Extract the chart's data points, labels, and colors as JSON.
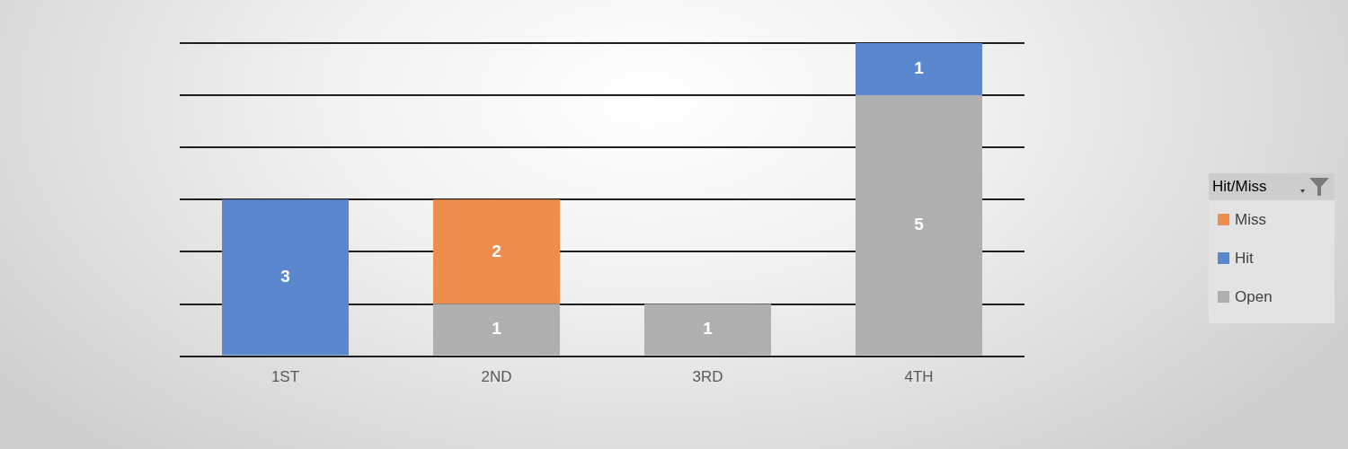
{
  "chart_data": {
    "type": "bar",
    "categories": [
      "1ST",
      "2ND",
      "3RD",
      "4TH"
    ],
    "series": [
      {
        "name": "Open",
        "color": "#afafaf",
        "values": [
          null,
          1,
          1,
          5
        ]
      },
      {
        "name": "Hit",
        "color": "#5b87cf",
        "values": [
          3,
          null,
          null,
          1
        ]
      },
      {
        "name": "Miss",
        "color": "#ef8e4c",
        "values": [
          null,
          2,
          null,
          null
        ]
      }
    ],
    "stacked": true,
    "data_labels": true,
    "grid": "y",
    "tick_labels": "x",
    "legend": "right",
    "legend_title": "Hit/Miss"
  }
}
